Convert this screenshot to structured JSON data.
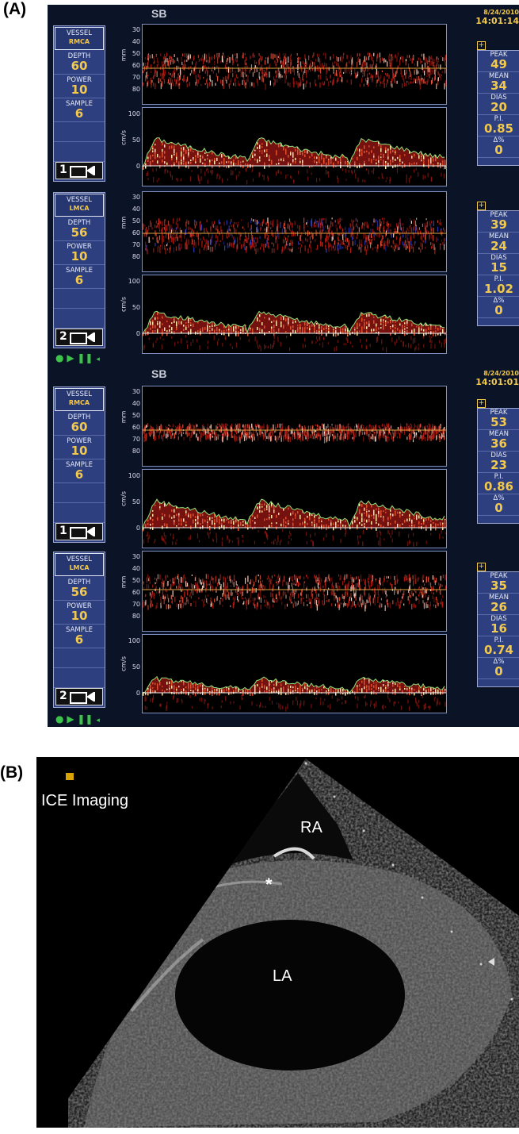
{
  "labels": {
    "a": "(A)",
    "b": "(B)"
  },
  "panel_a": {
    "sections": [
      {
        "header": "SB",
        "date": "8/24/2010",
        "time": "14:01:14",
        "channels": [
          {
            "vessel_label": "VESSEL",
            "vessel": "RMCA",
            "depth_label": "DEPTH",
            "depth": "60",
            "power_label": "POWER",
            "power": "10",
            "sample_label": "SAMPLE",
            "sample": "6",
            "probe": "1",
            "mm_unit": "mm",
            "mm_ticks": [
              "30",
              "40",
              "50",
              "60",
              "70",
              "80"
            ],
            "vel_unit": "cm/s",
            "vel_ticks": [
              "100",
              "50",
              "0"
            ],
            "stats": [
              {
                "label": "PEAK",
                "value": "49"
              },
              {
                "label": "MEAN",
                "value": "34"
              },
              {
                "label": "DIAS",
                "value": "20"
              },
              {
                "label": "P.I.",
                "value": "0.85"
              },
              {
                "label": "Δ%",
                "value": "0"
              }
            ]
          },
          {
            "vessel_label": "VESSEL",
            "vessel": "LMCA",
            "depth_label": "DEPTH",
            "depth": "56",
            "power_label": "POWER",
            "power": "10",
            "sample_label": "SAMPLE",
            "sample": "6",
            "probe": "2",
            "mm_unit": "mm",
            "mm_ticks": [
              "30",
              "40",
              "50",
              "60",
              "70",
              "80"
            ],
            "vel_unit": "cm/s",
            "vel_ticks": [
              "100",
              "50",
              "0"
            ],
            "stats": [
              {
                "label": "PEAK",
                "value": "39"
              },
              {
                "label": "MEAN",
                "value": "24"
              },
              {
                "label": "DIAS",
                "value": "15"
              },
              {
                "label": "P.I.",
                "value": "1.02"
              },
              {
                "label": "Δ%",
                "value": "0"
              }
            ]
          }
        ]
      },
      {
        "header": "SB",
        "date": "8/24/2010",
        "time": "14:01:01",
        "channels": [
          {
            "vessel_label": "VESSEL",
            "vessel": "RMCA",
            "depth_label": "DEPTH",
            "depth": "60",
            "power_label": "POWER",
            "power": "10",
            "sample_label": "SAMPLE",
            "sample": "6",
            "probe": "1",
            "mm_unit": "mm",
            "mm_ticks": [
              "30",
              "40",
              "50",
              "60",
              "70",
              "80"
            ],
            "vel_unit": "cm/s",
            "vel_ticks": [
              "100",
              "50",
              "0"
            ],
            "stats": [
              {
                "label": "PEAK",
                "value": "53"
              },
              {
                "label": "MEAN",
                "value": "36"
              },
              {
                "label": "DIAS",
                "value": "23"
              },
              {
                "label": "P.I.",
                "value": "0.86"
              },
              {
                "label": "Δ%",
                "value": "0"
              }
            ]
          },
          {
            "vessel_label": "VESSEL",
            "vessel": "LMCA",
            "depth_label": "DEPTH",
            "depth": "56",
            "power_label": "POWER",
            "power": "10",
            "sample_label": "SAMPLE",
            "sample": "6",
            "probe": "2",
            "mm_unit": "mm",
            "mm_ticks": [
              "30",
              "40",
              "50",
              "60",
              "70",
              "80"
            ],
            "vel_unit": "cm/s",
            "vel_ticks": [
              "100",
              "50",
              "0"
            ],
            "stats": [
              {
                "label": "PEAK",
                "value": "35"
              },
              {
                "label": "MEAN",
                "value": "26"
              },
              {
                "label": "DIAS",
                "value": "16"
              },
              {
                "label": "P.I.",
                "value": "0.74"
              },
              {
                "label": "Δ%",
                "value": "0"
              }
            ]
          }
        ]
      }
    ]
  },
  "panel_b": {
    "title": "ICE Imaging",
    "ra": "RA",
    "la": "LA",
    "asterisk": "*"
  },
  "colors": {
    "screen_bg": "#0b1426",
    "box_bg": "#2d3f7e",
    "value_yellow": "#f2c94c",
    "envelope_green": "#8fe27a",
    "baseline_orange": "#e0a040"
  }
}
